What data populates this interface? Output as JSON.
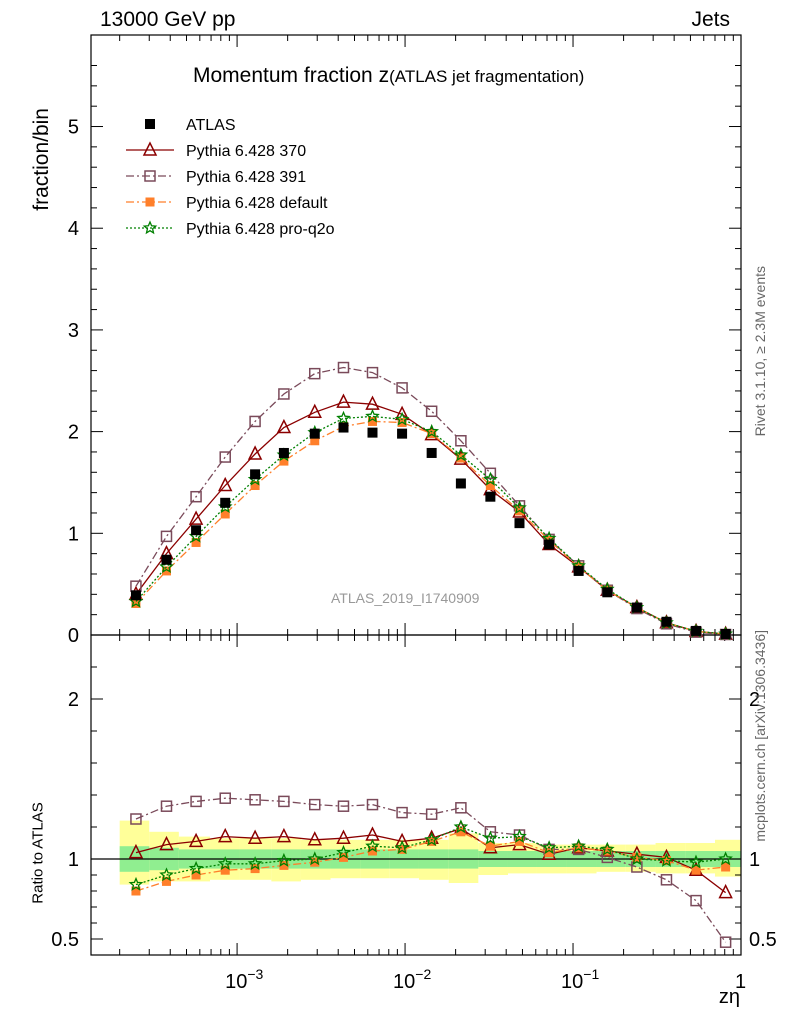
{
  "header": {
    "left": "13000 GeV pp",
    "right": "Jets"
  },
  "side_text": {
    "rivet": "Rivet 3.1.10, ≥ 2.3M events",
    "mcplots": "mcplots.cern.ch [arXiv:1306.3436]"
  },
  "chart_data": {
    "type": "line",
    "title_main": "Momentum fraction z",
    "title_sub": "(ATLAS jet fragmentation)",
    "watermark": "ATLAS_2019_I1740909",
    "xlabel": "zη",
    "ylabel_top": "fraction/bin",
    "ylabel_bottom": "Ratio to ATLAS",
    "x_scale": "log",
    "xlim": [
      0.000135,
      1.0
    ],
    "ylim_top": [
      0,
      5.9
    ],
    "ylim_bottom": [
      0.4,
      2.4
    ],
    "top_yticks": [
      "0",
      "1",
      "2",
      "3",
      "4",
      "5"
    ],
    "bottom_yticks": [
      "0.5",
      "1",
      "2"
    ],
    "xtick_labels": [
      {
        "base": "10",
        "exp": "−3",
        "value": 0.001
      },
      {
        "base": "10",
        "exp": "−2",
        "value": 0.01
      },
      {
        "base": "10",
        "exp": "−1",
        "value": 0.1
      },
      {
        "base": "1",
        "exp": "",
        "value": 1
      }
    ],
    "x": [
      0.00025,
      0.00038,
      0.00057,
      0.00085,
      0.00128,
      0.0019,
      0.0029,
      0.0043,
      0.0064,
      0.0096,
      0.0144,
      0.0215,
      0.0322,
      0.048,
      0.072,
      0.108,
      0.16,
      0.24,
      0.36,
      0.54,
      0.81
    ],
    "data": {
      "name": "ATLAS",
      "y": [
        0.39,
        0.74,
        1.03,
        1.3,
        1.58,
        1.79,
        1.98,
        2.04,
        1.99,
        1.98,
        1.79,
        1.49,
        1.36,
        1.1,
        0.89,
        0.63,
        0.42,
        0.27,
        0.13,
        0.04,
        0.01
      ]
    },
    "series": [
      {
        "name": "Pythia 6.428 370",
        "color": "#8b0000",
        "marker": "triangle-open",
        "line": "solid",
        "y": [
          0.4,
          0.8,
          1.14,
          1.47,
          1.78,
          2.04,
          2.19,
          2.29,
          2.27,
          2.17,
          1.97,
          1.73,
          1.43,
          1.21,
          0.89,
          0.67,
          0.44,
          0.27,
          0.12,
          0.035,
          0.008
        ],
        "ratio": [
          1.04,
          1.09,
          1.11,
          1.14,
          1.13,
          1.14,
          1.12,
          1.13,
          1.15,
          1.11,
          1.13,
          1.19,
          1.07,
          1.09,
          1.03,
          1.07,
          1.05,
          1.03,
          1.01,
          0.93,
          0.79
        ]
      },
      {
        "name": "Pythia 6.428 391",
        "color": "#7a4a5a",
        "marker": "square-open",
        "line": "dashdot",
        "y": [
          0.48,
          0.97,
          1.36,
          1.75,
          2.1,
          2.37,
          2.57,
          2.63,
          2.58,
          2.43,
          2.2,
          1.91,
          1.59,
          1.27,
          0.94,
          0.68,
          0.44,
          0.26,
          0.11,
          0.028,
          0.005
        ],
        "ratio": [
          1.25,
          1.33,
          1.36,
          1.38,
          1.37,
          1.36,
          1.34,
          1.33,
          1.34,
          1.29,
          1.28,
          1.32,
          1.17,
          1.15,
          1.06,
          1.06,
          1.01,
          0.95,
          0.87,
          0.74,
          0.48
        ]
      },
      {
        "name": "Pythia 6.428 default",
        "color": "#ff7f2a",
        "marker": "square-filled",
        "line": "dashdot",
        "y": [
          0.31,
          0.63,
          0.91,
          1.19,
          1.47,
          1.71,
          1.91,
          2.05,
          2.1,
          2.09,
          1.98,
          1.74,
          1.47,
          1.22,
          0.93,
          0.67,
          0.44,
          0.27,
          0.12,
          0.036,
          0.009
        ],
        "ratio": [
          0.8,
          0.86,
          0.9,
          0.93,
          0.94,
          0.96,
          0.98,
          1.01,
          1.05,
          1.06,
          1.11,
          1.17,
          1.08,
          1.11,
          1.04,
          1.07,
          1.05,
          1.01,
          0.99,
          0.93,
          0.95
        ]
      },
      {
        "name": "Pythia 6.428 pro-q2o",
        "color": "#008000",
        "marker": "star",
        "line": "dotted",
        "y": [
          0.33,
          0.67,
          0.97,
          1.26,
          1.53,
          1.77,
          1.99,
          2.13,
          2.15,
          2.12,
          2.0,
          1.77,
          1.53,
          1.25,
          0.95,
          0.68,
          0.45,
          0.27,
          0.12,
          0.037,
          0.01
        ],
        "ratio": [
          0.84,
          0.9,
          0.94,
          0.97,
          0.97,
          0.99,
          1.0,
          1.04,
          1.08,
          1.07,
          1.12,
          1.2,
          1.13,
          1.14,
          1.07,
          1.08,
          1.06,
          1.0,
          0.99,
          0.98,
          1.0
        ]
      }
    ],
    "ratio_band": {
      "edges": [
        0.0002,
        0.0003,
        0.00045,
        0.00069,
        0.00104,
        0.0016,
        0.0024,
        0.0036,
        0.0054,
        0.0081,
        0.0121,
        0.0182,
        0.0273,
        0.041,
        0.061,
        0.092,
        0.138,
        0.206,
        0.31,
        0.465,
        0.7,
        1.0
      ],
      "inner_up": [
        1.08,
        1.07,
        1.06,
        1.06,
        1.06,
        1.06,
        1.06,
        1.06,
        1.06,
        1.06,
        1.06,
        1.06,
        1.05,
        1.05,
        1.05,
        1.05,
        1.05,
        1.05,
        1.05,
        1.05,
        1.05
      ],
      "inner_dn": [
        0.92,
        0.93,
        0.94,
        0.94,
        0.94,
        0.94,
        0.94,
        0.94,
        0.94,
        0.94,
        0.94,
        0.94,
        0.95,
        0.95,
        0.95,
        0.95,
        0.95,
        0.95,
        0.95,
        0.95,
        0.95
      ],
      "outer_up": [
        1.24,
        1.17,
        1.14,
        1.13,
        1.13,
        1.13,
        1.12,
        1.12,
        1.12,
        1.12,
        1.12,
        1.16,
        1.1,
        1.1,
        1.09,
        1.09,
        1.09,
        1.09,
        1.1,
        1.1,
        1.12
      ],
      "outer_dn": [
        0.84,
        0.86,
        0.86,
        0.87,
        0.87,
        0.86,
        0.87,
        0.88,
        0.88,
        0.88,
        0.87,
        0.85,
        0.9,
        0.91,
        0.91,
        0.91,
        0.92,
        0.92,
        0.91,
        0.91,
        0.89
      ],
      "inner_color": "#90ee90",
      "outer_color": "#ffff99"
    },
    "legend_placement": "top-left"
  }
}
